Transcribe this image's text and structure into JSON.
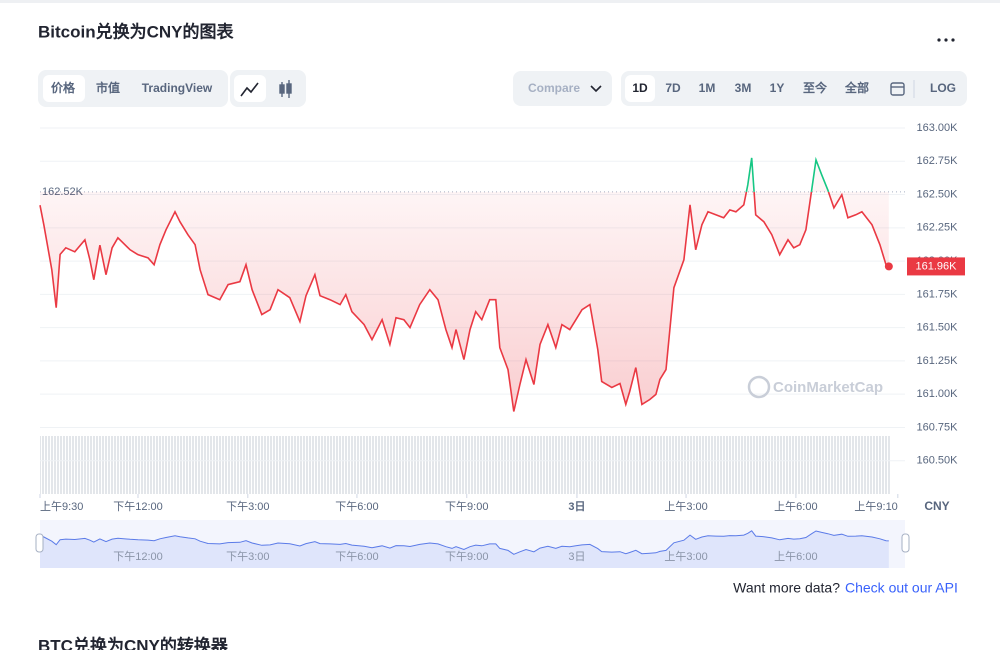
{
  "header": {
    "title": "Bitcoin兑换为CNY的图表"
  },
  "toolbar": {
    "views": [
      "价格",
      "市值",
      "TradingView"
    ],
    "compare": "Compare",
    "ranges": [
      "1D",
      "7D",
      "1M",
      "3M",
      "1Y",
      "至今",
      "全部"
    ],
    "log": "LOG"
  },
  "chart_data": {
    "type": "line",
    "x": [
      0,
      0.11,
      0.33,
      0.45,
      0.56,
      0.72,
      0.97,
      1.25,
      1.39,
      1.5,
      1.67,
      1.84,
      2.01,
      2.17,
      2.51,
      2.73,
      3.01,
      3.18,
      3.34,
      3.51,
      3.76,
      3.9,
      4.12,
      4.32,
      4.46,
      4.68,
      5.01,
      5.24,
      5.57,
      5.74,
      5.91,
      6.18,
      6.41,
      6.63,
      6.96,
      7.24,
      7.41,
      7.66,
      7.8,
      8.08,
      8.36,
      8.52,
      8.69,
      9.03,
      9.25,
      9.53,
      9.75,
      9.92,
      10.14,
      10.31,
      10.58,
      10.86,
      11.09,
      11.31,
      11.48,
      11.59,
      11.81,
      11.98,
      12.14,
      12.31,
      12.53,
      12.7,
      12.81,
      13.04,
      13.2,
      13.37,
      13.54,
      13.76,
      13.93,
      14.15,
      14.37,
      14.54,
      14.76,
      14.93,
      15.1,
      15.32,
      15.54,
      15.65,
      15.93,
      16.16,
      16.32,
      16.43,
      16.6,
      16.77,
      16.99,
      17.16,
      17.27,
      17.44,
      17.66,
      17.94,
      18.11,
      18.27,
      18.44,
      18.61,
      18.83,
      19.05,
      19.22,
      19.39,
      19.61,
      19.72,
      19.83,
      19.94,
      20.17,
      20.39,
      20.61,
      20.84,
      21.0,
      21.17,
      21.34,
      21.5,
      21.62,
      21.78,
      21.95,
      22.12,
      22.34,
      22.51,
      22.73,
      22.9,
      23.18,
      23.4,
      23.57,
      23.65
    ],
    "series": [
      {
        "color": "#ea3943",
        "color_above": "#16c784",
        "values": [
          162420,
          162270,
          161935,
          161650,
          162050,
          162100,
          162070,
          162160,
          162010,
          161860,
          162120,
          161898,
          162100,
          162175,
          162085,
          162048,
          162025,
          161973,
          162123,
          162235,
          162370,
          162295,
          162198,
          162123,
          161935,
          161748,
          161710,
          161823,
          161845,
          161973,
          161785,
          161598,
          161635,
          161785,
          161725,
          161545,
          161740,
          161898,
          161740,
          161710,
          161673,
          161748,
          161620,
          161523,
          161410,
          161560,
          161373,
          161575,
          161560,
          161500,
          161673,
          161785,
          161710,
          161485,
          161350,
          161485,
          161260,
          161485,
          161620,
          161560,
          161710,
          161710,
          161350,
          161185,
          160870,
          161073,
          161260,
          161073,
          161373,
          161523,
          161350,
          161523,
          161485,
          161560,
          161635,
          161673,
          161335,
          161095,
          161050,
          161080,
          160923,
          161020,
          161200,
          160923,
          160960,
          160998,
          161110,
          161185,
          161800,
          162010,
          162423,
          162085,
          162273,
          162370,
          162348,
          162325,
          162385,
          162370,
          162423,
          162573,
          162775,
          162348,
          162295,
          162198,
          162048,
          162160,
          162100,
          162123,
          162235,
          162535,
          162760,
          162648,
          162535,
          162400,
          162498,
          162325,
          162348,
          162370,
          162273,
          162123,
          161973,
          161960
        ]
      }
    ],
    "xlim": [
      0,
      24.1
    ],
    "xticks": [
      {
        "value": 0,
        "label": "上午9:30"
      },
      {
        "value": 2.73,
        "label": "下午12:00"
      },
      {
        "value": 5.79,
        "label": "下午3:00"
      },
      {
        "value": 8.83,
        "label": "下午6:00"
      },
      {
        "value": 11.89,
        "label": "下午9:00"
      },
      {
        "value": 14.96,
        "label": "3日"
      },
      {
        "value": 18.0,
        "label": "上午3:00"
      },
      {
        "value": 21.06,
        "label": "上午6:00"
      },
      {
        "value": 23.9,
        "label": "上午9:10"
      }
    ],
    "ylim": [
      160250,
      163000
    ],
    "yticks": [
      {
        "value": 163000,
        "label": "163.00K"
      },
      {
        "value": 162750,
        "label": "162.75K"
      },
      {
        "value": 162500,
        "label": "162.50K"
      },
      {
        "value": 162250,
        "label": "162.25K"
      },
      {
        "value": 162000,
        "label": "162.00K"
      },
      {
        "value": 161750,
        "label": "161.75K"
      },
      {
        "value": 161500,
        "label": "161.50K"
      },
      {
        "value": 161250,
        "label": "161.25K"
      },
      {
        "value": 161000,
        "label": "161.00K"
      },
      {
        "value": 160750,
        "label": "160.75K"
      },
      {
        "value": 160500,
        "label": "160.50K"
      }
    ],
    "grid": true,
    "reference": {
      "value": 162520,
      "label": "162.52K"
    },
    "current_price": {
      "value": 161960,
      "label": "161.96K"
    },
    "currency": "CNY",
    "watermark": "CoinMarketCap"
  },
  "footer": {
    "prompt": "Want more data?",
    "link": "Check out our API"
  },
  "next_section": {
    "title": "BTC兑换为CNY的转换器"
  }
}
